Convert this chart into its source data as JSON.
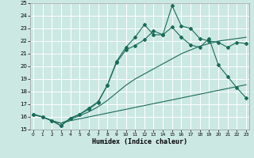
{
  "xlabel": "Humidex (Indice chaleur)",
  "bg_color": "#cce8e3",
  "line_color": "#1a6b5a",
  "xlim": [
    0,
    23
  ],
  "ylim": [
    15,
    25
  ],
  "xticks": [
    0,
    1,
    2,
    3,
    4,
    5,
    6,
    7,
    8,
    9,
    10,
    11,
    12,
    13,
    14,
    15,
    16,
    17,
    18,
    19,
    20,
    21,
    22,
    23
  ],
  "yticks": [
    15,
    16,
    17,
    18,
    19,
    20,
    21,
    22,
    23,
    24,
    25
  ],
  "series_jagged1_x": [
    0,
    1,
    2,
    3,
    4,
    5,
    6,
    7,
    8,
    9,
    10,
    11,
    12,
    13,
    14,
    15,
    16,
    17,
    18,
    19,
    20,
    21,
    22,
    23
  ],
  "series_jagged1_y": [
    16.2,
    16.0,
    15.7,
    15.3,
    15.9,
    16.2,
    16.6,
    17.15,
    18.5,
    20.3,
    21.3,
    21.65,
    22.1,
    22.8,
    22.5,
    23.1,
    22.3,
    21.7,
    21.5,
    22.2,
    20.1,
    19.2,
    18.3,
    17.5
  ],
  "series_jagged2_x": [
    0,
    1,
    2,
    3,
    4,
    5,
    6,
    7,
    8,
    9,
    10,
    11,
    12,
    13,
    14,
    15,
    16,
    17,
    18,
    19,
    20,
    21,
    22,
    23
  ],
  "series_jagged2_y": [
    16.2,
    16.0,
    15.7,
    15.3,
    15.9,
    16.2,
    16.7,
    17.2,
    18.5,
    20.4,
    21.5,
    22.3,
    23.3,
    22.5,
    22.5,
    24.8,
    23.2,
    23.0,
    22.2,
    22.0,
    21.9,
    21.5,
    21.9,
    21.8
  ],
  "series_smooth1_x": [
    0,
    1,
    2,
    3,
    4,
    5,
    6,
    7,
    8,
    9,
    10,
    11,
    12,
    13,
    14,
    15,
    16,
    17,
    18,
    19,
    20,
    21,
    22,
    23
  ],
  "series_smooth1_y": [
    16.2,
    16.0,
    15.7,
    15.5,
    15.8,
    16.1,
    16.4,
    16.8,
    17.3,
    17.9,
    18.5,
    19.0,
    19.4,
    19.8,
    20.2,
    20.6,
    21.0,
    21.3,
    21.6,
    21.8,
    22.0,
    22.1,
    22.2,
    22.3
  ],
  "series_smooth2_x": [
    0,
    1,
    2,
    3,
    4,
    5,
    6,
    7,
    8,
    9,
    10,
    11,
    12,
    13,
    14,
    15,
    16,
    17,
    18,
    19,
    20,
    21,
    22,
    23
  ],
  "series_smooth2_y": [
    16.2,
    16.0,
    15.7,
    15.5,
    15.7,
    15.85,
    16.0,
    16.15,
    16.3,
    16.45,
    16.6,
    16.75,
    16.9,
    17.05,
    17.2,
    17.35,
    17.5,
    17.65,
    17.8,
    17.95,
    18.1,
    18.25,
    18.4,
    18.55
  ]
}
